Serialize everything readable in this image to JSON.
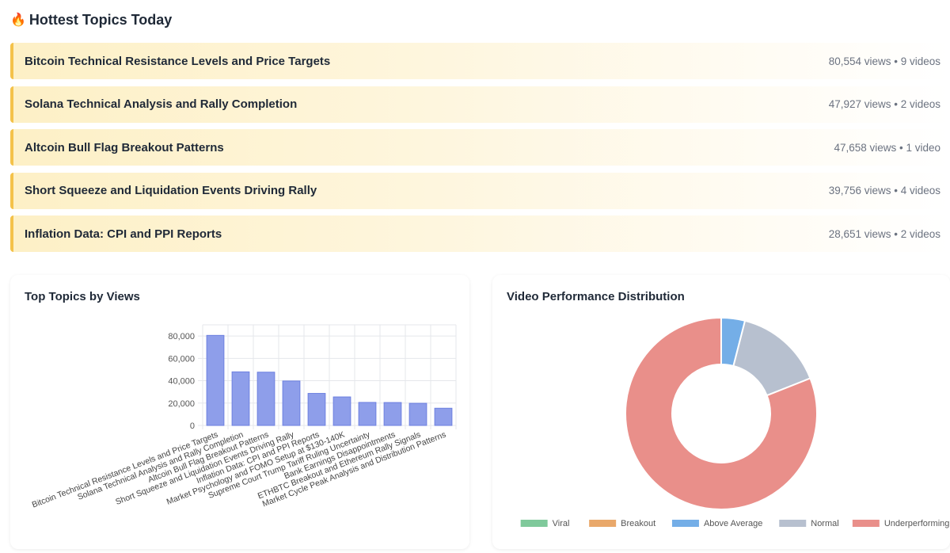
{
  "header": {
    "icon": "fire-icon",
    "title": "Hottest Topics Today"
  },
  "topics": [
    {
      "title": "Bitcoin Technical Resistance Levels and Price Targets",
      "meta": "80,554 views • 9 videos"
    },
    {
      "title": "Solana Technical Analysis and Rally Completion",
      "meta": "47,927 views • 2 videos"
    },
    {
      "title": "Altcoin Bull Flag Breakout Patterns",
      "meta": "47,658 views • 1 video"
    },
    {
      "title": "Short Squeeze and Liquidation Events Driving Rally",
      "meta": "39,756 views • 4 videos"
    },
    {
      "title": "Inflation Data: CPI and PPI Reports",
      "meta": "28,651 views • 2 videos"
    }
  ],
  "bar_card": {
    "title": "Top Topics by Views"
  },
  "pie_card": {
    "title": "Video Performance Distribution"
  },
  "colors": {
    "accent_border": "#f4c24a",
    "bar_fill": "#8e9eea",
    "bar_stroke": "#6d80e0",
    "viral": "#7fc99b",
    "breakout": "#e9a86a",
    "above_average": "#74aee7",
    "normal": "#b7c0cf",
    "underperforming": "#e98f8a"
  },
  "chart_data": [
    {
      "type": "bar",
      "title": "Top Topics by Views",
      "categories": [
        "Bitcoin Technical Resistance Levels and Price Targets",
        "Solana Technical Analysis and Rally Completion",
        "Altcoin Bull Flag Breakout Patterns",
        "Short Squeeze and Liquidation Events Driving Rally",
        "Inflation Data: CPI and PPI Reports",
        "Market Psychology and FOMO Setup at $130-140K",
        "Supreme Court Trump Tariff Ruling Uncertainty",
        "Bank Earnings Disappointments",
        "ETHBTC Breakout and Ethereum Rally Signals",
        "Market Cycle Peak Analysis and Distribution Patterns"
      ],
      "values": [
        80554,
        47927,
        47658,
        39756,
        28651,
        25500,
        20600,
        20500,
        19800,
        15400
      ],
      "ylim": [
        0,
        90000
      ],
      "yticks": [
        0,
        20000,
        40000,
        60000,
        80000
      ],
      "ytick_labels": [
        "0",
        "20,000",
        "40,000",
        "60,000",
        "80,000"
      ],
      "grid": true,
      "xlabel": "",
      "ylabel": ""
    },
    {
      "type": "pie",
      "variant": "doughnut",
      "title": "Video Performance Distribution",
      "labels": [
        "Viral",
        "Breakout",
        "Above Average",
        "Normal",
        "Underperforming"
      ],
      "values": [
        0,
        0,
        4,
        15,
        81
      ],
      "legend": "bottom"
    }
  ]
}
